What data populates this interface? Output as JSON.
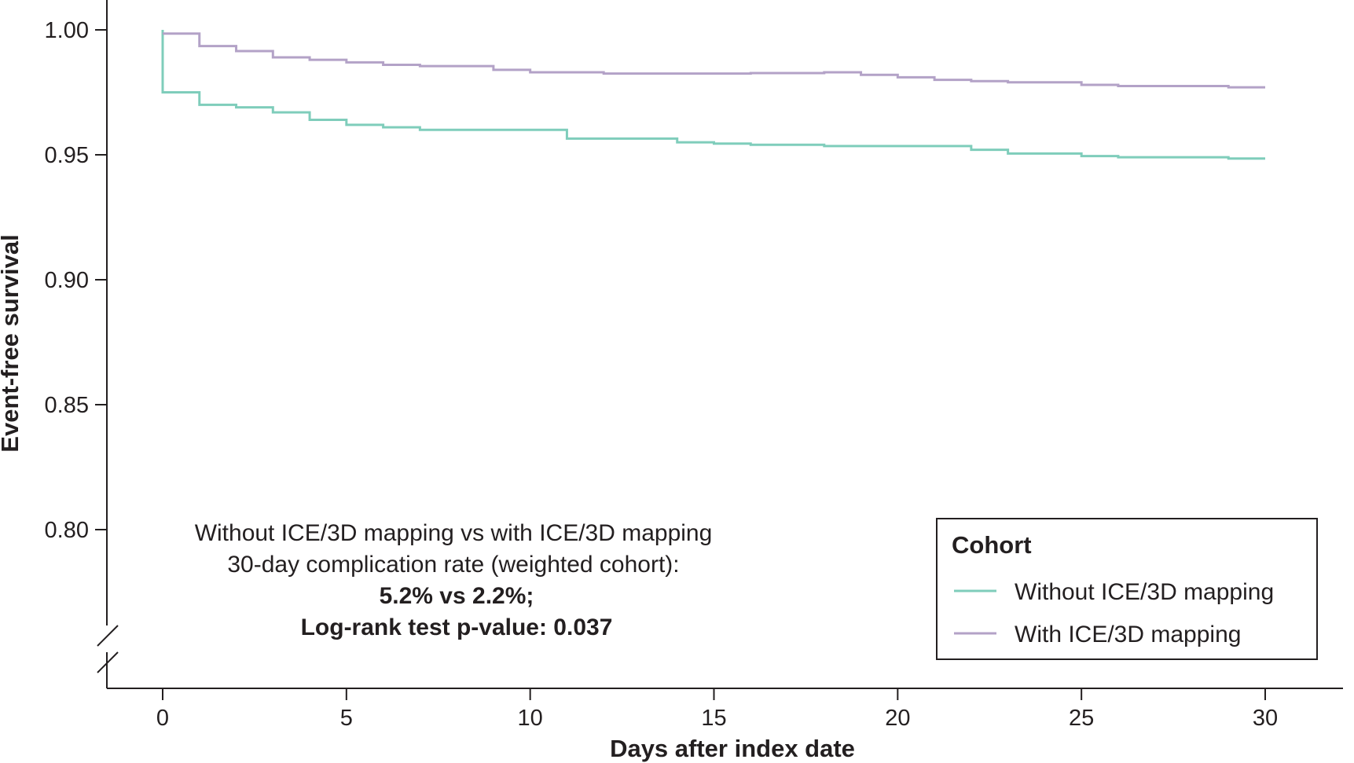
{
  "chart_data": {
    "type": "line",
    "step": true,
    "title": "",
    "xlabel": "Days after index date",
    "ylabel": "Event-free survival",
    "xlim": [
      0,
      30
    ],
    "ylim": [
      0.75,
      1.0
    ],
    "y_axis_break": true,
    "xticks": [
      0,
      5,
      10,
      15,
      20,
      25,
      30
    ],
    "xtick_labels": [
      "0",
      "5",
      "10",
      "15",
      "20",
      "25",
      "30"
    ],
    "yticks": [
      0.8,
      0.85,
      0.9,
      0.95,
      1.0
    ],
    "ytick_labels": [
      "0.80",
      "0.85",
      "0.90",
      "0.95",
      "1.00"
    ],
    "grid": false,
    "legend": {
      "title": "Cohort",
      "position": "bottom-right"
    },
    "series": [
      {
        "name": "Without ICE/3D mapping",
        "color": "#7fcdbb",
        "x": [
          0,
          0,
          1,
          2,
          3,
          4,
          5,
          6,
          7,
          8,
          9,
          10,
          11,
          12,
          13,
          14,
          15,
          16,
          17,
          18,
          19,
          20,
          21,
          22,
          23,
          24,
          25,
          26,
          27,
          28,
          29,
          30
        ],
        "y": [
          1.0,
          0.975,
          0.97,
          0.969,
          0.967,
          0.964,
          0.962,
          0.961,
          0.96,
          0.96,
          0.96,
          0.96,
          0.9565,
          0.9565,
          0.9565,
          0.955,
          0.9545,
          0.954,
          0.954,
          0.9535,
          0.9535,
          0.9535,
          0.9535,
          0.952,
          0.9505,
          0.9505,
          0.9495,
          0.949,
          0.949,
          0.949,
          0.9485,
          0.9485
        ]
      },
      {
        "name": "With ICE/3D mapping",
        "color": "#b3a2c7",
        "x": [
          0,
          1,
          2,
          3,
          4,
          5,
          6,
          7,
          8,
          9,
          10,
          11,
          12,
          13,
          14,
          15,
          16,
          17,
          18,
          19,
          20,
          21,
          22,
          23,
          24,
          25,
          26,
          27,
          28,
          29,
          30
        ],
        "y": [
          0.9985,
          0.9935,
          0.9915,
          0.989,
          0.988,
          0.987,
          0.986,
          0.9855,
          0.9855,
          0.984,
          0.983,
          0.983,
          0.9825,
          0.9825,
          0.9825,
          0.9825,
          0.9827,
          0.9827,
          0.983,
          0.982,
          0.981,
          0.98,
          0.9795,
          0.979,
          0.979,
          0.978,
          0.9775,
          0.9775,
          0.9775,
          0.977,
          0.977
        ]
      }
    ],
    "annotations": [
      "Without ICE/3D mapping vs with ICE/3D mapping",
      "30-day complication rate (weighted cohort):",
      "5.2% vs 2.2%;",
      "Log-rank test p-value: 0.037"
    ]
  }
}
